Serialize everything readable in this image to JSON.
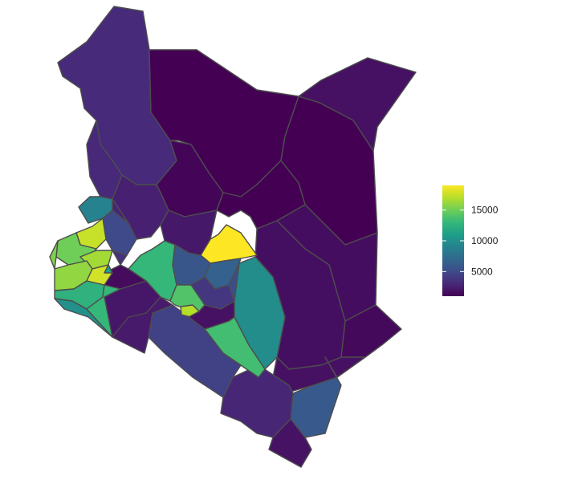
{
  "map": {
    "fill_attribute": "value",
    "regions": [
      {
        "id": "turkana",
        "value": 3200
      },
      {
        "id": "marsabit",
        "value": 400
      },
      {
        "id": "mandera",
        "value": 1800
      },
      {
        "id": "wajir",
        "value": 200
      },
      {
        "id": "west-pokot",
        "value": 3000
      },
      {
        "id": "samburu",
        "value": 1200
      },
      {
        "id": "isiolo",
        "value": 1000
      },
      {
        "id": "garissa",
        "value": 1600
      },
      {
        "id": "tana-river",
        "value": 1700
      },
      {
        "id": "lamu",
        "value": 1400
      },
      {
        "id": "kilifi",
        "value": 1800
      },
      {
        "id": "mombasa",
        "value": 1900
      },
      {
        "id": "kwale",
        "value": 6000
      },
      {
        "id": "taita-taveta",
        "value": 2900
      },
      {
        "id": "makueni",
        "value": 1800
      },
      {
        "id": "kitui",
        "value": 9800
      },
      {
        "id": "machakos",
        "value": 13500
      },
      {
        "id": "kajiado",
        "value": 4500
      },
      {
        "id": "narok",
        "value": 2300
      },
      {
        "id": "meru",
        "value": 19000
      },
      {
        "id": "baringo",
        "value": 2600
      },
      {
        "id": "laikipia",
        "value": 2200
      },
      {
        "id": "nakuru",
        "value": 13000
      },
      {
        "id": "nyandarua",
        "value": 5800
      },
      {
        "id": "nyeri",
        "value": 4200
      },
      {
        "id": "kirinyaga",
        "value": 6500
      },
      {
        "id": "embu",
        "value": 5200
      },
      {
        "id": "muranga",
        "value": 3900
      },
      {
        "id": "kiambu",
        "value": 14000
      },
      {
        "id": "nairobi",
        "value": 17000
      },
      {
        "id": "kericho",
        "value": 1500
      },
      {
        "id": "bomet",
        "value": 2100
      },
      {
        "id": "trans-nzoia",
        "value": 9000
      },
      {
        "id": "uasin-gishu",
        "value": 5000
      },
      {
        "id": "elgeyo-marakwet",
        "value": 2800
      },
      {
        "id": "nandi",
        "value": 3600
      },
      {
        "id": "bungoma",
        "value": 17500
      },
      {
        "id": "kakamega",
        "value": 15000
      },
      {
        "id": "vihiga",
        "value": 16500
      },
      {
        "id": "busia",
        "value": 15500
      },
      {
        "id": "siaya",
        "value": 16000
      },
      {
        "id": "kisumu",
        "value": 17800
      },
      {
        "id": "homa-bay",
        "value": 12500
      },
      {
        "id": "migori",
        "value": 10000
      },
      {
        "id": "kisii",
        "value": 13000
      },
      {
        "id": "nyamira",
        "value": 11000
      }
    ]
  },
  "legend": {
    "min": 1000,
    "max": 19000,
    "ticks": [
      {
        "value": 5000,
        "label": "5000"
      },
      {
        "value": 10000,
        "label": "10000"
      },
      {
        "value": 15000,
        "label": "15000"
      }
    ],
    "colors": [
      "#440154",
      "#482878",
      "#3e4a89",
      "#31688e",
      "#26828e",
      "#1f9e89",
      "#35b779",
      "#6ece58",
      "#b5de2b",
      "#fde725"
    ]
  }
}
